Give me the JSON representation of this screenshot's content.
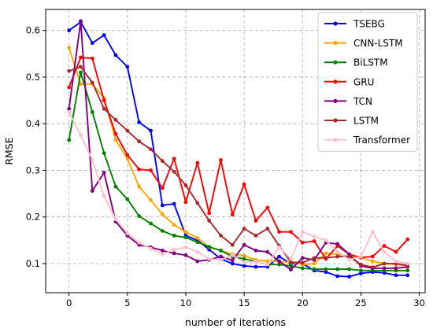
{
  "chart_data": {
    "type": "line",
    "title": "",
    "xlabel": "number of iterations",
    "ylabel": "RMSE",
    "xlim": [
      -2,
      30.5
    ],
    "ylim": [
      0.0375,
      0.645
    ],
    "xticks": [
      0,
      5,
      10,
      15,
      20,
      25,
      30
    ],
    "yticks": [
      0.1,
      0.2,
      0.3,
      0.4,
      0.5,
      0.6
    ],
    "ytick_labels": [
      "0.1",
      "0.2",
      "0.3",
      "0.4",
      "0.5",
      "0.6"
    ],
    "grid": true,
    "legend_position": "top-right",
    "x": [
      0,
      1,
      2,
      3,
      4,
      5,
      6,
      7,
      8,
      9,
      10,
      11,
      12,
      13,
      14,
      15,
      16,
      17,
      18,
      19,
      20,
      21,
      22,
      23,
      24,
      25,
      26,
      27,
      28,
      29
    ],
    "series": [
      {
        "name": "TSEBG",
        "color": "#0000ff",
        "values": [
          0.6,
          0.618,
          0.573,
          0.59,
          0.547,
          0.522,
          0.403,
          0.385,
          0.225,
          0.228,
          0.16,
          0.15,
          0.13,
          0.11,
          0.1,
          0.095,
          0.093,
          0.093,
          0.115,
          0.1,
          0.1,
          0.085,
          0.082,
          0.073,
          0.072,
          0.079,
          0.082,
          0.08,
          0.075,
          0.075
        ]
      },
      {
        "name": "CNN-LSTM",
        "color": "#ffa500",
        "values": [
          0.563,
          0.485,
          0.485,
          0.455,
          0.365,
          0.325,
          0.265,
          0.236,
          0.206,
          0.183,
          0.168,
          0.155,
          0.135,
          0.128,
          0.12,
          0.117,
          0.108,
          0.105,
          0.105,
          0.103,
          0.098,
          0.1,
          0.122,
          0.12,
          0.115,
          0.113,
          0.105,
          0.1,
          0.098,
          0.095
        ]
      },
      {
        "name": "BiLSTM",
        "color": "#008000",
        "values": [
          0.365,
          0.51,
          0.425,
          0.337,
          0.265,
          0.238,
          0.202,
          0.186,
          0.17,
          0.16,
          0.156,
          0.146,
          0.136,
          0.128,
          0.115,
          0.11,
          0.105,
          0.098,
          0.098,
          0.095,
          0.09,
          0.088,
          0.088,
          0.088,
          0.088,
          0.085,
          0.085,
          0.085,
          0.085,
          0.085
        ]
      },
      {
        "name": "GRU",
        "color": "#ff0000",
        "values": [
          0.478,
          0.542,
          0.54,
          0.45,
          0.378,
          0.333,
          0.302,
          0.3,
          0.262,
          0.325,
          0.232,
          0.316,
          0.208,
          0.322,
          0.205,
          0.27,
          0.192,
          0.22,
          0.168,
          0.168,
          0.145,
          0.148,
          0.11,
          0.138,
          0.12,
          0.113,
          0.115,
          0.138,
          0.125,
          0.152
        ]
      },
      {
        "name": "TCN",
        "color": "#800080",
        "values": [
          0.432,
          0.62,
          0.256,
          0.295,
          0.19,
          0.16,
          0.14,
          0.135,
          0.128,
          0.122,
          0.118,
          0.105,
          0.108,
          0.115,
          0.107,
          0.14,
          0.128,
          0.125,
          0.105,
          0.087,
          0.112,
          0.108,
          0.145,
          0.142,
          0.12,
          0.095,
          0.09,
          0.09,
          0.09,
          0.093
        ]
      },
      {
        "name": "LSTM",
        "color": "#a52a2a",
        "values": [
          0.513,
          0.522,
          0.488,
          0.432,
          0.408,
          0.385,
          0.362,
          0.345,
          0.32,
          0.297,
          0.268,
          0.23,
          0.192,
          0.16,
          0.14,
          0.175,
          0.16,
          0.175,
          0.138,
          0.103,
          0.102,
          0.112,
          0.112,
          0.115,
          0.115,
          0.098,
          0.092,
          0.1,
          0.1,
          0.096
        ]
      },
      {
        "name": "Transformer",
        "color": "#ffc0cb",
        "values": [
          0.425,
          0.375,
          0.322,
          0.245,
          0.195,
          0.165,
          0.145,
          0.132,
          0.12,
          0.13,
          0.135,
          0.125,
          0.11,
          0.108,
          0.118,
          0.102,
          0.105,
          0.098,
          0.135,
          0.11,
          0.168,
          0.158,
          0.15,
          0.125,
          0.108,
          0.115,
          0.168,
          0.125,
          0.105,
          0.1
        ]
      }
    ]
  }
}
